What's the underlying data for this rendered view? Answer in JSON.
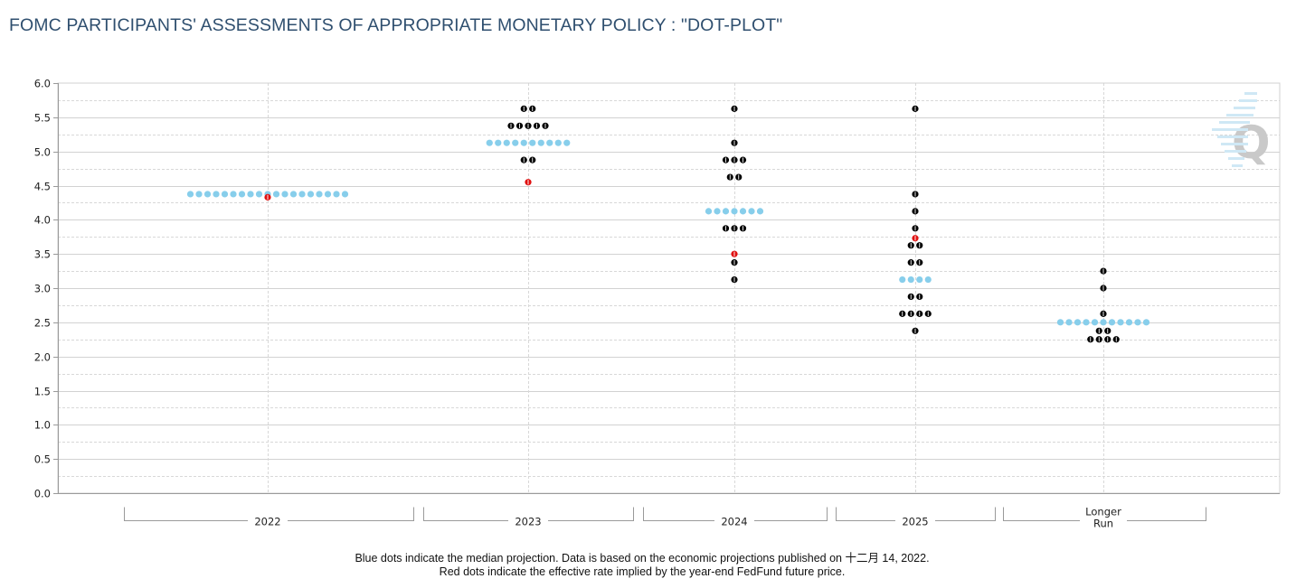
{
  "title": "FOMC PARTICIPANTS' ASSESSMENTS OF APPROPRIATE MONETARY POLICY : \"DOT-PLOT\"",
  "chart_data": {
    "type": "scatter",
    "subtype": "dot-plot",
    "xlabel": "",
    "ylabel": "",
    "ylim": [
      0,
      6
    ],
    "ytick_step": 0.5,
    "minor_grid_step": 0.25,
    "yticks": [
      "0.0",
      "0.5",
      "1.0",
      "1.5",
      "2.0",
      "2.5",
      "3.0",
      "3.5",
      "4.0",
      "4.5",
      "5.0",
      "5.5",
      "6.0"
    ],
    "grid": true,
    "categories": [
      {
        "label_lines": [
          "2022"
        ],
        "dots": [],
        "median": {
          "value": 4.375,
          "count": 19
        },
        "market": 4.33
      },
      {
        "label_lines": [
          "2023"
        ],
        "dots": [
          {
            "value": 5.625,
            "count": 2
          },
          {
            "value": 5.375,
            "count": 5
          },
          {
            "value": 4.875,
            "count": 2
          }
        ],
        "median": {
          "value": 5.125,
          "count": 10
        },
        "market": 4.55
      },
      {
        "label_lines": [
          "2024"
        ],
        "dots": [
          {
            "value": 5.625,
            "count": 1
          },
          {
            "value": 5.125,
            "count": 1
          },
          {
            "value": 4.875,
            "count": 3
          },
          {
            "value": 4.625,
            "count": 2
          },
          {
            "value": 3.875,
            "count": 3
          },
          {
            "value": 3.375,
            "count": 1
          },
          {
            "value": 3.125,
            "count": 1
          }
        ],
        "median": {
          "value": 4.125,
          "count": 7
        },
        "market": 3.5
      },
      {
        "label_lines": [
          "2025"
        ],
        "dots": [
          {
            "value": 5.625,
            "count": 1
          },
          {
            "value": 4.375,
            "count": 1
          },
          {
            "value": 4.125,
            "count": 1
          },
          {
            "value": 3.875,
            "count": 1
          },
          {
            "value": 3.625,
            "count": 2
          },
          {
            "value": 3.375,
            "count": 2
          },
          {
            "value": 2.875,
            "count": 2
          },
          {
            "value": 2.625,
            "count": 4
          },
          {
            "value": 2.375,
            "count": 1
          }
        ],
        "median": {
          "value": 3.125,
          "count": 4
        },
        "market": 3.73
      },
      {
        "label_lines": [
          "Longer",
          "Run"
        ],
        "dots": [
          {
            "value": 3.25,
            "count": 1
          },
          {
            "value": 3.0,
            "count": 1
          },
          {
            "value": 2.625,
            "count": 1
          },
          {
            "value": 2.375,
            "count": 2
          },
          {
            "value": 2.25,
            "count": 4
          }
        ],
        "median": {
          "value": 2.5,
          "count": 11
        },
        "market": null
      }
    ],
    "annotations": [
      "Blue dots indicate the median projection. Data is based on the economic projections published on 十二月 14, 2022.",
      "Red dots indicate the effective rate implied by the year-end FedFund future price."
    ]
  },
  "logo_text": "Q",
  "colors": {
    "median": "#87ceeb",
    "market": "#e01010",
    "participant": "#000000",
    "grid_major": "#d2d2d2",
    "grid_minor": "#d8d8d8",
    "axis": "#9a9a9a",
    "title": "#2f4f6f"
  }
}
